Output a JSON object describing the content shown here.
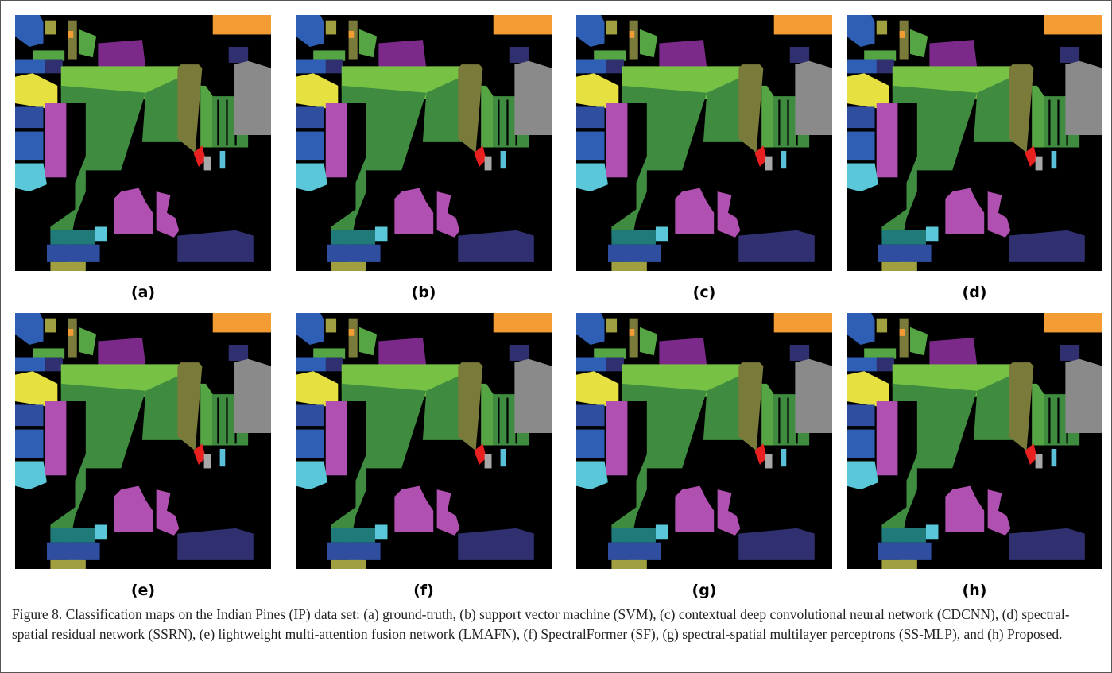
{
  "panels": [
    {
      "label": "(a)"
    },
    {
      "label": "(b)"
    },
    {
      "label": "(c)"
    },
    {
      "label": "(d)"
    },
    {
      "label": "(e)"
    },
    {
      "label": "(f)"
    },
    {
      "label": "(g)"
    },
    {
      "label": "(h)"
    }
  ],
  "caption": "Figure 8. Classification maps on the Indian Pines (IP) data set: (a) ground-truth, (b) support vector machine (SVM), (c) contextual deep convolutional neural network (CDCNN), (d) spectral-spatial residual network (SSRN), (e) lightweight multi-attention fusion network (LMAFN), (f) SpectralFormer (SF), (g) spectral-spatial multilayer perceptrons (SS-MLP), and (h) Proposed."
}
